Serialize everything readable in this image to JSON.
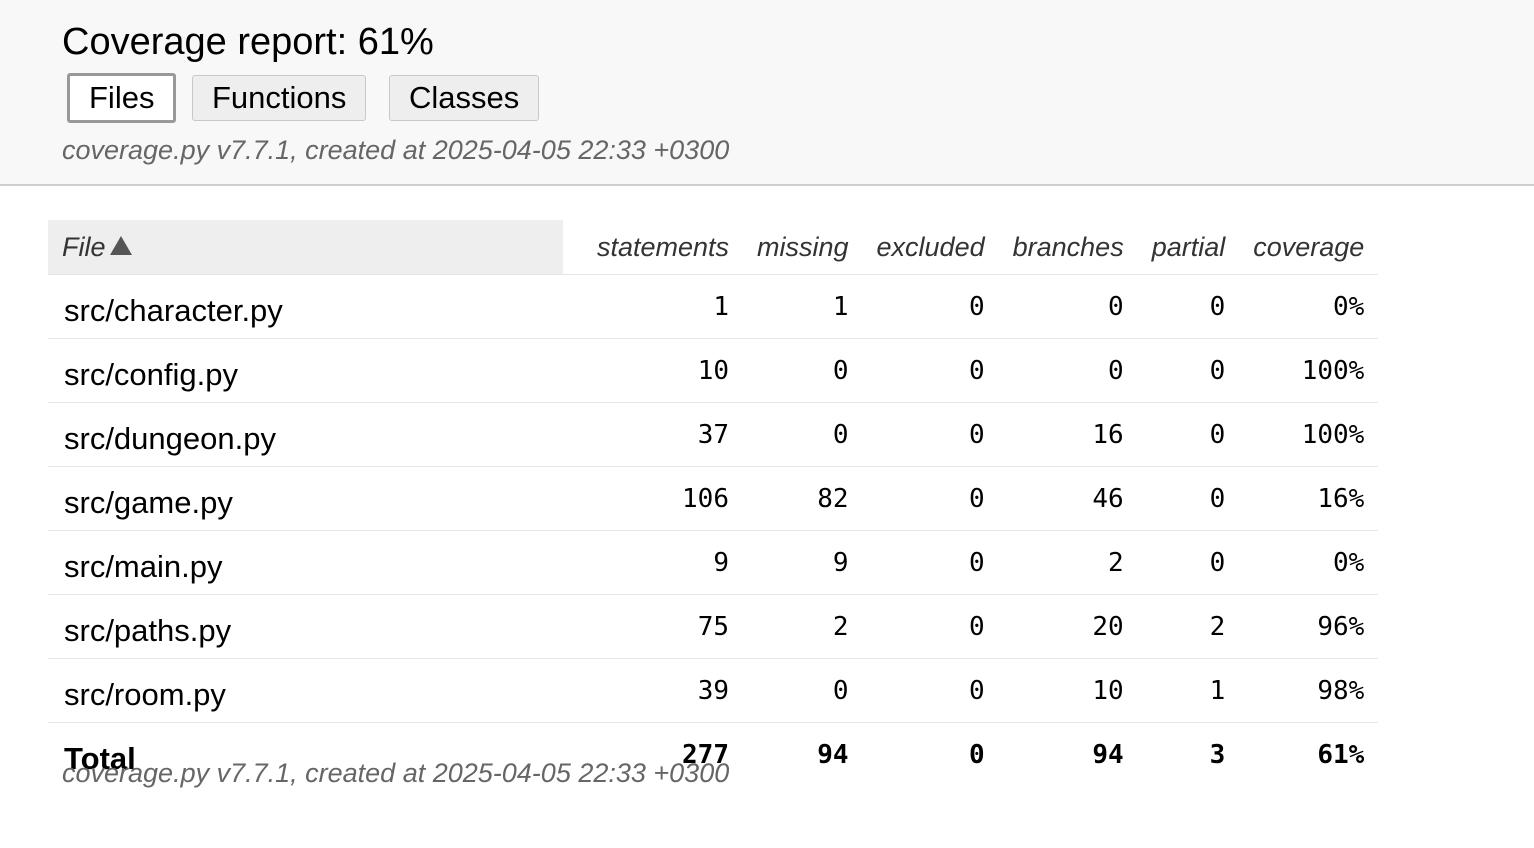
{
  "header": {
    "title": "Coverage report: 61%",
    "tabs": [
      {
        "label": "Files",
        "current": true
      },
      {
        "label": "Functions",
        "current": false
      },
      {
        "label": "Classes",
        "current": false
      }
    ],
    "created": "coverage.py v7.7.1, created at 2025-04-05 22:33 +0300"
  },
  "table": {
    "columns": {
      "file": "File",
      "statements": "statements",
      "missing": "missing",
      "excluded": "excluded",
      "branches": "branches",
      "partial": "partial",
      "coverage": "coverage"
    },
    "sort_icon": "sort-ascending-icon",
    "rows": [
      {
        "file": "src/character.py",
        "statements": "1",
        "missing": "1",
        "excluded": "0",
        "branches": "0",
        "partial": "0",
        "coverage": "0%"
      },
      {
        "file": "src/config.py",
        "statements": "10",
        "missing": "0",
        "excluded": "0",
        "branches": "0",
        "partial": "0",
        "coverage": "100%"
      },
      {
        "file": "src/dungeon.py",
        "statements": "37",
        "missing": "0",
        "excluded": "0",
        "branches": "16",
        "partial": "0",
        "coverage": "100%"
      },
      {
        "file": "src/game.py",
        "statements": "106",
        "missing": "82",
        "excluded": "0",
        "branches": "46",
        "partial": "0",
        "coverage": "16%"
      },
      {
        "file": "src/main.py",
        "statements": "9",
        "missing": "9",
        "excluded": "0",
        "branches": "2",
        "partial": "0",
        "coverage": "0%"
      },
      {
        "file": "src/paths.py",
        "statements": "75",
        "missing": "2",
        "excluded": "0",
        "branches": "20",
        "partial": "2",
        "coverage": "96%"
      },
      {
        "file": "src/room.py",
        "statements": "39",
        "missing": "0",
        "excluded": "0",
        "branches": "10",
        "partial": "1",
        "coverage": "98%"
      }
    ],
    "total": {
      "file": "Total",
      "statements": "277",
      "missing": "94",
      "excluded": "0",
      "branches": "94",
      "partial": "3",
      "coverage": "61%"
    }
  },
  "footer": {
    "created": "coverage.py v7.7.1, created at 2025-04-05 22:33 +0300"
  }
}
